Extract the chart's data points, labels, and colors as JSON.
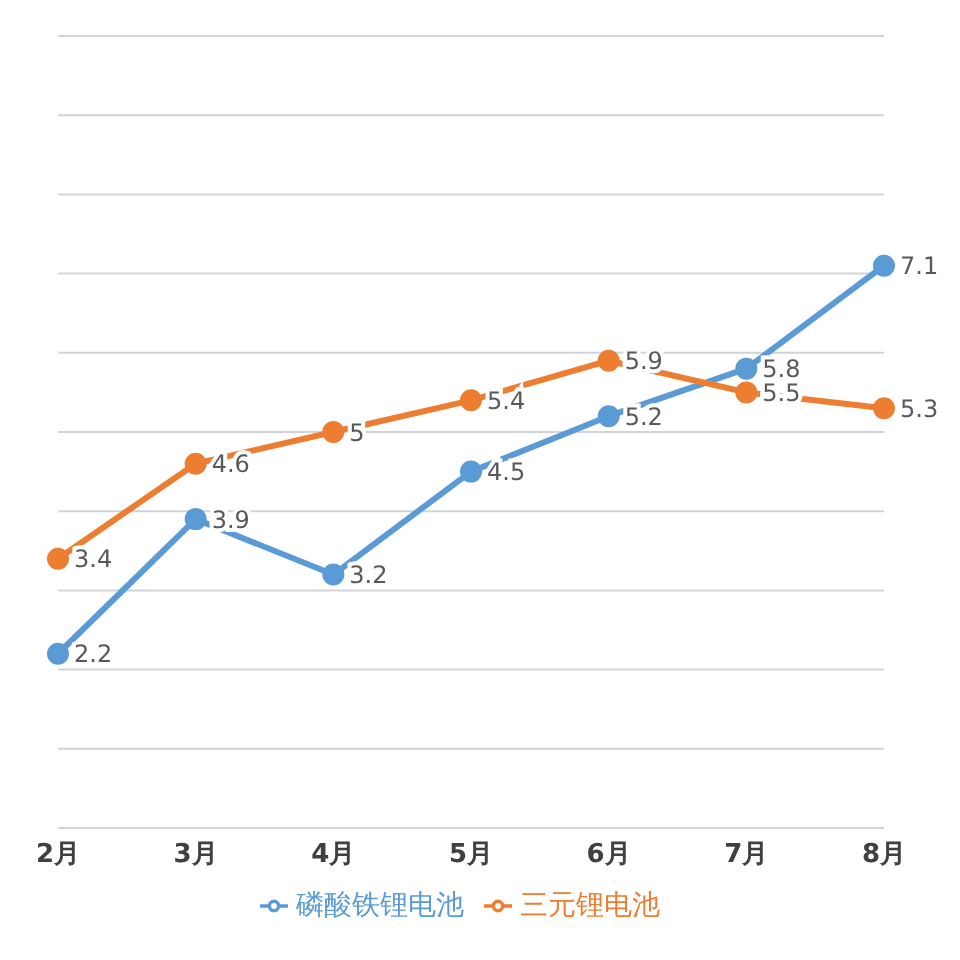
{
  "chart_data": {
    "type": "line",
    "categories": [
      "2月",
      "3月",
      "4月",
      "5月",
      "6月",
      "7月",
      "8月"
    ],
    "series": [
      {
        "name": "磷酸铁锂电池",
        "color": "#5b9bd5",
        "values": [
          2.2,
          3.9,
          3.2,
          4.5,
          5.2,
          5.8,
          7.1
        ]
      },
      {
        "name": "三元锂电池",
        "color": "#ed7d31",
        "values": [
          3.4,
          4.6,
          5.0,
          5.4,
          5.9,
          5.5,
          5.3
        ]
      }
    ],
    "ylim": [
      0,
      10
    ],
    "yticks": [
      0,
      1,
      2,
      3,
      4,
      5,
      6,
      7,
      8,
      9,
      10
    ],
    "tick_labels": "x",
    "grid": "y",
    "legend": "bottom",
    "marker": "circle",
    "line_style": "solid",
    "data_labels": true
  }
}
